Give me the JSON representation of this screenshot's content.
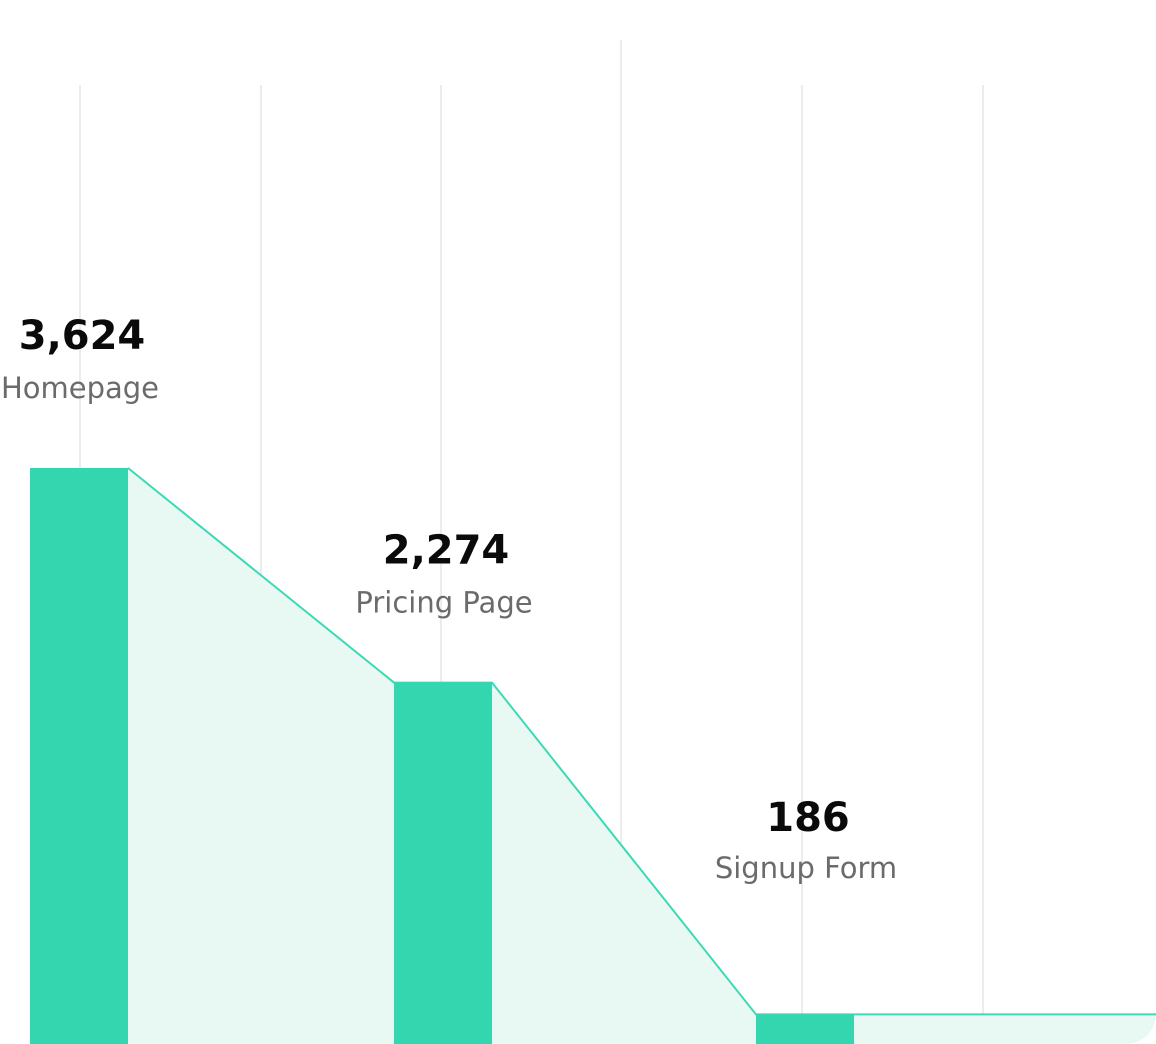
{
  "chart_data": {
    "type": "funnel",
    "categories": [
      "Homepage",
      "Pricing Page",
      "Signup Form"
    ],
    "values": [
      3624,
      2274,
      186
    ],
    "value_labels": [
      "3,624",
      "2,274",
      "186"
    ],
    "color": "#34d6b0"
  }
}
